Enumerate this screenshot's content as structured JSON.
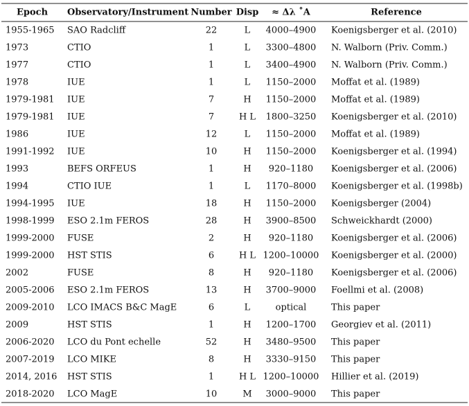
{
  "table": {
    "columns": [
      "Epoch",
      "Observatory/Instrument",
      "Number",
      "Disp",
      "≈ Δλ ˚A",
      "Reference"
    ],
    "rows": [
      [
        "1955-1965",
        "SAO Radcliff",
        22,
        "L",
        "4000–4900",
        "Koenigsberger et al. (2010)"
      ],
      [
        "1973",
        "CTIO",
        1,
        "L",
        "3300–4800",
        "N. Walborn (Priv. Comm.)"
      ],
      [
        "1977",
        "CTIO",
        1,
        "L",
        "3400–4900",
        "N. Walborn (Priv. Comm.)"
      ],
      [
        "1978",
        "IUE",
        1,
        "L",
        "1150–2000",
        "Moffat et al. (1989)"
      ],
      [
        "1979-1981",
        "IUE",
        7,
        "H",
        "1150–2000",
        "Moffat et al. (1989)"
      ],
      [
        "1979-1981",
        "IUE",
        7,
        "H L",
        "1800–3250",
        "Koenigsberger et al. (2010)"
      ],
      [
        "1986",
        "IUE",
        12,
        "L",
        "1150–2000",
        "Moffat et al. (1989)"
      ],
      [
        "1991-1992",
        "IUE",
        10,
        "H",
        "1150–2000",
        "Koenigsberger et al. (1994)"
      ],
      [
        "1993",
        "BEFS ORFEUS",
        1,
        "H",
        "920–1180",
        "Koenigsberger et al. (2006)"
      ],
      [
        "1994",
        "CTIO IUE",
        1,
        "L",
        "1170–8000",
        "Koenigsberger et al. (1998b)"
      ],
      [
        "1994-1995",
        "IUE",
        18,
        "H",
        "1150–2000",
        "Koenigsberger (2004)"
      ],
      [
        "1998-1999",
        "ESO 2.1m FEROS",
        28,
        "H",
        "3900–8500",
        "Schweickhardt (2000)"
      ],
      [
        "1999-2000",
        "FUSE",
        2,
        "H",
        "920–1180",
        "Koenigsberger et al. (2006)"
      ],
      [
        "1999-2000",
        "HST STIS",
        6,
        "H L",
        "1200–10000",
        "Koenigsberger et al. (2000)"
      ],
      [
        "2002",
        "FUSE",
        8,
        "H",
        "920–1180",
        "Koenigsberger et al. (2006)"
      ],
      [
        "2005-2006",
        "ESO 2.1m FEROS",
        13,
        "H",
        "3700–9000",
        "Foellmi et al. (2008)"
      ],
      [
        "2009-2010",
        "LCO IMACS B&C MagE",
        6,
        "L",
        "optical",
        "This paper"
      ],
      [
        "2009",
        "HST STIS",
        1,
        "H",
        "1200–1700",
        "Georgiev et al. (2011)"
      ],
      [
        "2006-2020",
        "LCO du Pont echelle",
        52,
        "H",
        "3480–9500",
        "This paper"
      ],
      [
        "2007-2019",
        "LCO MIKE",
        8,
        "H",
        "3330–9150",
        "This paper"
      ],
      [
        "2014, 2016",
        "HST STIS",
        1,
        "H L",
        "1200–10000",
        "Hillier et al. (2019)"
      ],
      [
        "2018-2020",
        "LCO MagE",
        10,
        "M",
        "3000–9000",
        "This paper"
      ]
    ]
  }
}
